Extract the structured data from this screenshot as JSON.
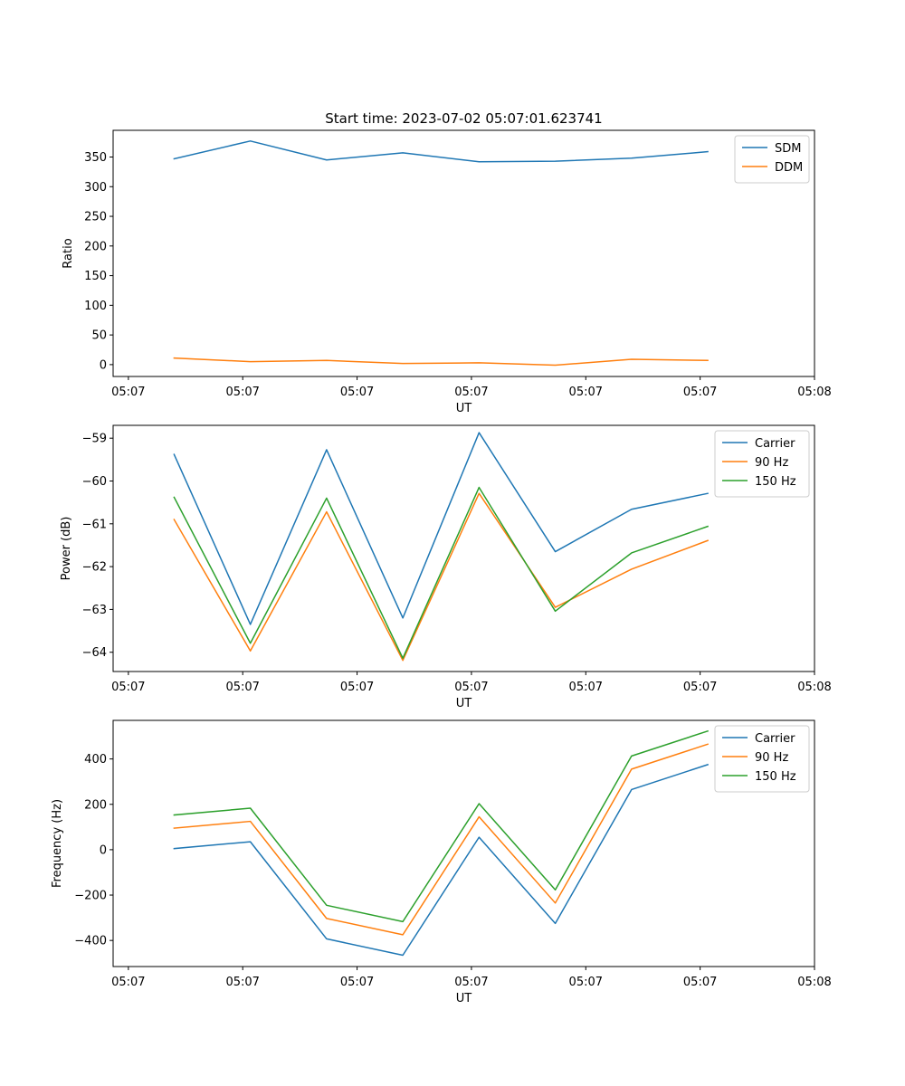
{
  "figure_title": "Start time: 2023-07-02 05:07:01.623741",
  "colors": {
    "blue": "#1f77b4",
    "orange": "#ff7f0e",
    "green": "#2ca02c"
  },
  "chart_data": [
    {
      "type": "line",
      "title": "Start time: 2023-07-02 05:07:01.623741",
      "xlabel": "UT",
      "ylabel": "Ratio",
      "x": [
        1,
        2,
        3,
        4,
        5,
        6,
        7,
        8
      ],
      "xlim": [
        0.2,
        9.4
      ],
      "x_ticks": [
        0.4,
        1.9,
        3.4,
        4.9,
        6.4,
        7.9,
        9.4
      ],
      "x_tick_labels": [
        "05:07",
        "05:07",
        "05:07",
        "05:07",
        "05:07",
        "05:07",
        "05:08"
      ],
      "ylim": [
        -20,
        395
      ],
      "y_ticks": [
        0,
        50,
        100,
        150,
        200,
        250,
        300,
        350
      ],
      "y_tick_labels": [
        "0",
        "50",
        "100",
        "150",
        "200",
        "250",
        "300",
        "350"
      ],
      "legend_position": "top-right",
      "series": [
        {
          "name": "SDM",
          "color": "#1f77b4",
          "values": [
            347,
            377,
            345,
            357,
            342,
            343,
            348,
            359
          ]
        },
        {
          "name": "DDM",
          "color": "#ff7f0e",
          "values": [
            11,
            5,
            7,
            2,
            3,
            -1,
            9,
            7
          ]
        }
      ]
    },
    {
      "type": "line",
      "title": "",
      "xlabel": "UT",
      "ylabel": "Power (dB)",
      "x": [
        1,
        2,
        3,
        4,
        5,
        6,
        7,
        8
      ],
      "xlim": [
        0.2,
        9.4
      ],
      "x_ticks": [
        0.4,
        1.9,
        3.4,
        4.9,
        6.4,
        7.9,
        9.4
      ],
      "x_tick_labels": [
        "05:07",
        "05:07",
        "05:07",
        "05:07",
        "05:07",
        "05:07",
        "05:08"
      ],
      "ylim": [
        -64.45,
        -58.7
      ],
      "y_ticks": [
        -64,
        -63,
        -62,
        -61,
        -60,
        -59
      ],
      "y_tick_labels": [
        "−64",
        "−63",
        "−62",
        "−61",
        "−60",
        "−59"
      ],
      "legend_position": "top-right",
      "series": [
        {
          "name": "Carrier",
          "color": "#1f77b4",
          "values": [
            -59.38,
            -63.35,
            -59.27,
            -63.2,
            -58.87,
            -61.65,
            -60.66,
            -60.29
          ]
        },
        {
          "name": "90 Hz",
          "color": "#ff7f0e",
          "values": [
            -60.9,
            -63.97,
            -60.72,
            -64.19,
            -60.29,
            -62.95,
            -62.06,
            -61.39
          ]
        },
        {
          "name": "150 Hz",
          "color": "#2ca02c",
          "values": [
            -60.38,
            -63.79,
            -60.4,
            -64.14,
            -60.15,
            -63.04,
            -61.68,
            -61.06
          ]
        }
      ]
    },
    {
      "type": "line",
      "title": "",
      "xlabel": "UT",
      "ylabel": "Frequency (Hz)",
      "x": [
        1,
        2,
        3,
        4,
        5,
        6,
        7,
        8
      ],
      "xlim": [
        0.2,
        9.4
      ],
      "x_ticks": [
        0.4,
        1.9,
        3.4,
        4.9,
        6.4,
        7.9,
        9.4
      ],
      "x_tick_labels": [
        "05:07",
        "05:07",
        "05:07",
        "05:07",
        "05:07",
        "05:07",
        "05:08"
      ],
      "ylim": [
        -515,
        570
      ],
      "y_ticks": [
        -400,
        -200,
        0,
        200,
        400
      ],
      "y_tick_labels": [
        "−400",
        "−200",
        "0",
        "200",
        "400"
      ],
      "legend_position": "top-right",
      "series": [
        {
          "name": "Carrier",
          "color": "#1f77b4",
          "values": [
            5,
            35,
            -393,
            -465,
            55,
            -325,
            265,
            375
          ]
        },
        {
          "name": "90 Hz",
          "color": "#ff7f0e",
          "values": [
            95,
            125,
            -303,
            -375,
            145,
            -235,
            355,
            465
          ]
        },
        {
          "name": "150 Hz",
          "color": "#2ca02c",
          "values": [
            153,
            183,
            -245,
            -317,
            203,
            -177,
            413,
            523
          ]
        }
      ]
    }
  ]
}
